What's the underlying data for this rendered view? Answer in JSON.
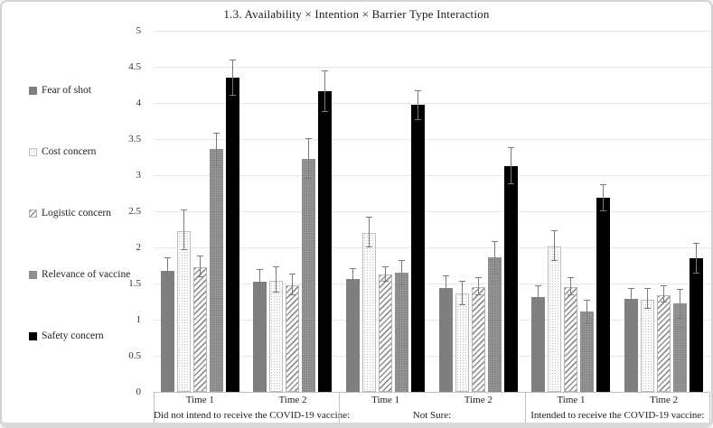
{
  "figure": {
    "title": "1.3. Availability × Intention × Barrier Type Interaction"
  },
  "legend": {
    "position": "left",
    "items": [
      {
        "label": "Fear of shot",
        "swatch": "solid-gray-swatch"
      },
      {
        "label": "Cost concern",
        "swatch": "dotted-light-swatch"
      },
      {
        "label": "Logistic concern",
        "swatch": "diagonal-hatch-swatch"
      },
      {
        "label": "Relevance of vaccine",
        "swatch": "dotted-dark-swatch"
      },
      {
        "label": "Safety concern",
        "swatch": "solid-black-swatch"
      }
    ]
  },
  "chart_data": {
    "type": "bar",
    "title": "1.3. Availability × Intention × Barrier Type Interaction",
    "ylim": [
      0,
      5
    ],
    "yticks": [
      "5",
      "4.5",
      "4",
      "3.5",
      "3",
      "2.5",
      "2",
      "1.5",
      "1",
      "0.5",
      "0"
    ],
    "grid": true,
    "error_bars": true,
    "series_names": [
      "Fear of shot",
      "Cost concern",
      "Logistic concern",
      "Relevance of vaccine",
      "Safety concern"
    ],
    "bar_patterns": [
      "solid-gray",
      "dotted-light",
      "diagonal-hatch",
      "dotted-dark",
      "solid-black"
    ],
    "category_labels": [
      "Did not intend to receive the COVID-19 vaccine:",
      "Not Sure:",
      "Intended to receive the COVID-19 vaccine:"
    ],
    "groups": [
      {
        "category_index": 0,
        "time_label": "Time 1",
        "values": [
          1.67,
          2.23,
          1.73,
          3.36,
          4.35
        ],
        "errors": [
          0.19,
          0.28,
          0.15,
          0.23,
          0.25
        ]
      },
      {
        "category_index": 0,
        "time_label": "Time 2",
        "values": [
          1.52,
          1.54,
          1.47,
          3.23,
          4.16
        ],
        "errors": [
          0.18,
          0.18,
          0.15,
          0.28,
          0.29
        ]
      },
      {
        "category_index": 1,
        "time_label": "Time 1",
        "values": [
          1.56,
          2.2,
          1.62,
          1.65,
          3.97
        ],
        "errors": [
          0.15,
          0.21,
          0.11,
          0.18,
          0.21
        ]
      },
      {
        "category_index": 1,
        "time_label": "Time 2",
        "values": [
          1.44,
          1.36,
          1.45,
          1.86,
          3.13
        ],
        "errors": [
          0.17,
          0.17,
          0.12,
          0.23,
          0.26
        ]
      },
      {
        "category_index": 2,
        "time_label": "Time 1",
        "values": [
          1.31,
          2.01,
          1.45,
          1.11,
          2.69
        ],
        "errors": [
          0.17,
          0.21,
          0.12,
          0.17,
          0.19
        ]
      },
      {
        "category_index": 2,
        "time_label": "Time 2",
        "values": [
          1.29,
          1.28,
          1.34,
          1.22,
          1.85
        ],
        "errors": [
          0.15,
          0.14,
          0.12,
          0.21,
          0.21
        ]
      }
    ],
    "colors": {
      "solid_gray": "#7f7f7f",
      "solid_black": "#000000",
      "gridline": "#e7e7e7",
      "axis": "#c0c0c0",
      "error_bar": "#7a7a7a",
      "text": "#222222"
    }
  }
}
